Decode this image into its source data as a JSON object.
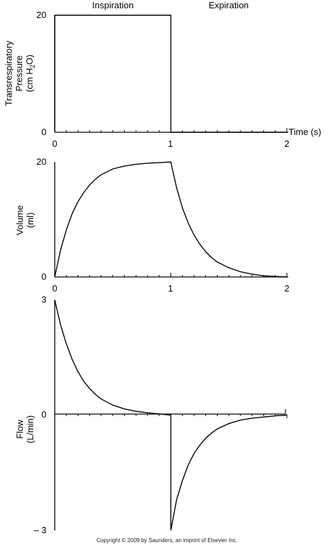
{
  "phase_labels": {
    "inspiration": "Inspiration",
    "expiration": "Expiration"
  },
  "copyright": "Copyright © 2009 by Saunders, an imprint of Elsevier Inc.",
  "chart_data": [
    {
      "type": "line",
      "id": "pressure",
      "ylabel_lines": [
        "Transrespiratory",
        "Pressure"
      ],
      "ylabel_unit": {
        "pre": "(cm H",
        "sub": "2",
        "post": "O)"
      },
      "xlabel": "Time (s)",
      "xlim": [
        0,
        2
      ],
      "ylim": [
        0,
        20
      ],
      "xticks": [
        "0",
        "1",
        "2"
      ],
      "yticks": [
        "0",
        "20"
      ],
      "series": [
        {
          "x": [
            0,
            0,
            1,
            1,
            2
          ],
          "y": [
            0,
            20,
            20,
            0,
            0
          ]
        }
      ]
    },
    {
      "type": "line",
      "id": "volume",
      "ylabel_lines": [
        "Volume",
        "(ml)"
      ],
      "xlim": [
        0,
        2
      ],
      "ylim": [
        0,
        20
      ],
      "xticks": [
        "0",
        "1",
        "2"
      ],
      "yticks": [
        "0",
        "20"
      ],
      "series": [
        {
          "x": [
            0,
            0.05,
            0.1,
            0.15,
            0.2,
            0.25,
            0.3,
            0.35,
            0.4,
            0.5,
            0.6,
            0.7,
            0.8,
            0.9,
            1.0,
            1.05,
            1.1,
            1.15,
            1.2,
            1.25,
            1.3,
            1.35,
            1.4,
            1.5,
            1.6,
            1.7,
            1.8,
            1.9,
            2.0
          ],
          "y": [
            0,
            4.7,
            8.2,
            11.0,
            13.1,
            14.7,
            16.0,
            17.0,
            17.8,
            18.8,
            19.3,
            19.6,
            19.8,
            19.9,
            20.0,
            15.5,
            12.0,
            9.4,
            7.3,
            5.7,
            4.4,
            3.4,
            2.6,
            1.6,
            0.9,
            0.5,
            0.2,
            0.1,
            0.0
          ]
        }
      ]
    },
    {
      "type": "line",
      "id": "flow",
      "ylabel_lines": [
        "Flow",
        "(L/min)"
      ],
      "xlim": [
        0,
        2
      ],
      "ylim": [
        -3,
        3
      ],
      "xticks": [],
      "yticks": [
        "3",
        "0",
        "– 3"
      ],
      "series": [
        {
          "x": [
            0,
            0.05,
            0.1,
            0.15,
            0.2,
            0.25,
            0.3,
            0.35,
            0.4,
            0.5,
            0.6,
            0.7,
            0.8,
            0.9,
            1.0,
            1.0,
            1.05,
            1.1,
            1.15,
            1.2,
            1.25,
            1.3,
            1.35,
            1.4,
            1.5,
            1.6,
            1.7,
            1.8,
            1.9,
            2.0
          ],
          "y": [
            3.0,
            2.35,
            1.85,
            1.45,
            1.13,
            0.88,
            0.69,
            0.54,
            0.42,
            0.26,
            0.16,
            0.1,
            0.06,
            0.03,
            0.0,
            -3.0,
            -2.2,
            -1.7,
            -1.3,
            -1.0,
            -0.78,
            -0.6,
            -0.47,
            -0.36,
            -0.22,
            -0.13,
            -0.08,
            -0.05,
            -0.02,
            0.0
          ]
        }
      ]
    }
  ]
}
